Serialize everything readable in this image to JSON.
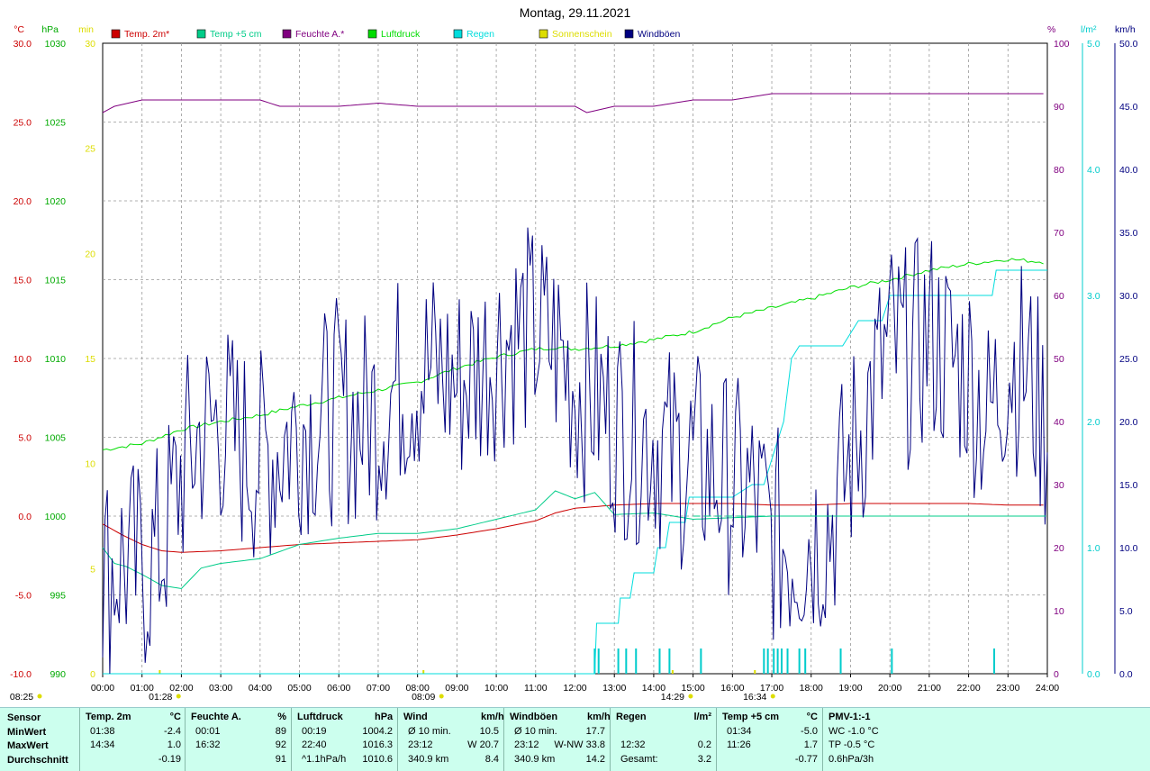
{
  "chart_data": {
    "type": "line",
    "title": "Montag, 29.11.2021",
    "x": {
      "ticks": [
        "00:00",
        "01:00",
        "02:00",
        "03:00",
        "04:00",
        "05:00",
        "06:00",
        "07:00",
        "08:00",
        "09:00",
        "10:00",
        "11:00",
        "12:00",
        "13:00",
        "14:00",
        "15:00",
        "16:00",
        "17:00",
        "18:00",
        "19:00",
        "20:00",
        "21:00",
        "22:00",
        "23:00",
        "24:00"
      ],
      "range_h": [
        0,
        24
      ]
    },
    "axes": {
      "temp": {
        "unit": "°C",
        "min": -10,
        "max": 30,
        "color": "#cc0000",
        "ticks": [
          "30.0",
          "25.0",
          "20.0",
          "15.0",
          "10.0",
          "5.0",
          "0.0",
          "-5.0",
          "-10.0"
        ]
      },
      "pressure": {
        "unit": "hPa",
        "min": 990,
        "max": 1030,
        "color": "#00aa00",
        "ticks": [
          "1030",
          "1025",
          "1020",
          "1015",
          "1010",
          "1005",
          "1000",
          "995",
          "990"
        ]
      },
      "sun": {
        "unit": "min",
        "min": 0,
        "max": 30,
        "color": "#dddd00",
        "ticks": [
          "30",
          "25",
          "20",
          "15",
          "10",
          "5",
          "0"
        ]
      },
      "humidity": {
        "unit": "%",
        "min": 0,
        "max": 100,
        "color": "#800080",
        "ticks": [
          "100",
          "90",
          "80",
          "70",
          "60",
          "50",
          "40",
          "30",
          "20",
          "10",
          "0"
        ]
      },
      "rain": {
        "unit": "l/m²",
        "min": 0,
        "max": 5,
        "color": "#00cccc",
        "ticks": [
          "5.0",
          "4.0",
          "3.0",
          "2.0",
          "1.0",
          "0.0"
        ]
      },
      "wind": {
        "unit": "km/h",
        "min": 0,
        "max": 50,
        "color": "#000080",
        "ticks": [
          "50.0",
          "45.0",
          "40.0",
          "35.0",
          "30.0",
          "25.0",
          "20.0",
          "15.0",
          "10.0",
          "5.0",
          "0.0"
        ]
      }
    },
    "legend": [
      {
        "name": "Temp. 2m*",
        "color": "#cc0000"
      },
      {
        "name": "Temp +5 cm",
        "color": "#00cc88"
      },
      {
        "name": "Feuchte A.*",
        "color": "#800080"
      },
      {
        "name": "Luftdruck",
        "color": "#00dd00"
      },
      {
        "name": "Regen",
        "color": "#00dddd"
      },
      {
        "name": "Sonnenschein",
        "color": "#dddd00"
      },
      {
        "name": "Windböen",
        "color": "#000080"
      }
    ],
    "series": [
      {
        "name": "Temp. 2m*",
        "axis": "temp",
        "x": [
          0,
          0.5,
          1,
          1.5,
          2,
          3,
          4,
          5,
          6,
          7,
          8,
          9,
          10,
          11,
          11.5,
          12,
          13,
          14,
          15,
          16,
          17,
          18,
          19,
          20,
          21,
          22,
          23,
          24
        ],
        "values": [
          -0.5,
          -1.2,
          -1.8,
          -2.2,
          -2.3,
          -2.2,
          -2.0,
          -1.8,
          -1.7,
          -1.6,
          -1.5,
          -1.2,
          -0.8,
          -0.3,
          0.2,
          0.5,
          0.7,
          0.8,
          0.8,
          0.8,
          0.7,
          0.7,
          0.8,
          0.8,
          0.8,
          0.8,
          0.7,
          0.7
        ]
      },
      {
        "name": "Temp +5 cm",
        "axis": "temp",
        "x": [
          0,
          0.3,
          0.6,
          1,
          1.5,
          2,
          2.5,
          3,
          4,
          5,
          6,
          7,
          8,
          9,
          10,
          11,
          11.5,
          12,
          12.5,
          13,
          14,
          15,
          16,
          17,
          18,
          19,
          20,
          21,
          22,
          23,
          24
        ],
        "values": [
          -2.0,
          -3.0,
          -3.2,
          -3.7,
          -4.4,
          -4.6,
          -3.3,
          -3.0,
          -2.7,
          -1.8,
          -1.4,
          -1.1,
          -1.1,
          -0.8,
          -0.2,
          0.4,
          1.6,
          1.1,
          1.5,
          0.1,
          0.2,
          -0.2,
          -0.1,
          0,
          0,
          0,
          0,
          0,
          0,
          0,
          0
        ]
      },
      {
        "name": "Feuchte A.*",
        "axis": "humidity",
        "x": [
          0,
          0.3,
          1,
          2,
          4,
          4.5,
          5,
          6,
          7,
          8,
          10,
          11,
          12,
          12.3,
          13,
          14,
          15,
          16,
          17,
          18,
          20,
          24
        ],
        "values": [
          89,
          90,
          91,
          91,
          91,
          90,
          90,
          90,
          90.5,
          90,
          90,
          90,
          90,
          89,
          90,
          90,
          91,
          91,
          92,
          92,
          92,
          92
        ]
      },
      {
        "name": "Luftdruck",
        "axis": "pressure",
        "x": [
          0,
          1,
          2,
          3,
          4,
          5,
          6,
          7,
          8,
          9,
          10,
          11,
          11.5,
          12,
          13,
          14,
          15,
          16,
          17,
          18,
          19,
          20,
          21,
          22,
          23,
          24
        ],
        "values": [
          1004.2,
          1004.6,
          1005.5,
          1006.0,
          1006.4,
          1007.0,
          1007.5,
          1008.0,
          1008.5,
          1009.4,
          1010.1,
          1010.6,
          1010.7,
          1010.6,
          1010.8,
          1011.2,
          1011.7,
          1012.6,
          1013.2,
          1013.8,
          1014.5,
          1015.0,
          1015.6,
          1016.0,
          1016.3,
          1016.1
        ]
      },
      {
        "name": "Regen",
        "axis": "rain",
        "x": [
          0,
          12.5,
          12.55,
          13.1,
          13.15,
          13.4,
          13.5,
          14.0,
          14.1,
          14.3,
          14.4,
          14.8,
          14.9,
          15.0,
          16.0,
          16.5,
          16.8,
          17.0,
          17.3,
          17.5,
          17.7,
          18.0,
          18.8,
          19.2,
          19.8,
          20.0,
          21.0,
          22.0,
          22.6,
          22.7,
          24
        ],
        "values": [
          0,
          0,
          0.4,
          0.4,
          0.6,
          0.6,
          0.8,
          0.8,
          1.0,
          1.0,
          1.2,
          1.2,
          1.4,
          1.4,
          1.4,
          1.5,
          1.5,
          1.7,
          2.0,
          2.5,
          2.6,
          2.6,
          2.6,
          2.8,
          2.8,
          3.0,
          3.0,
          3.0,
          3.0,
          3.2,
          3.2
        ]
      },
      {
        "name": "Windböen",
        "axis": "wind",
        "kind": "noisy",
        "x": [
          0,
          0.5,
          1,
          1.5,
          2,
          2.5,
          3,
          3.5,
          4,
          4.5,
          5,
          5.5,
          6,
          6.5,
          7,
          7.5,
          8,
          8.5,
          9,
          9.5,
          10,
          10.5,
          11,
          11.5,
          12,
          12.5,
          13,
          13.5,
          14,
          14.5,
          15,
          15.5,
          16,
          16.5,
          17,
          17.5,
          18,
          18.5,
          19,
          19.5,
          20,
          20.5,
          21,
          21.5,
          22,
          22.5,
          23,
          23.5,
          24
        ],
        "values": [
          8,
          9,
          8,
          10,
          16,
          19,
          20,
          18,
          17,
          18,
          20,
          20,
          21,
          20,
          21,
          23,
          24,
          24,
          23,
          24,
          26,
          27,
          27,
          26,
          23,
          22,
          20,
          19,
          19,
          17,
          17,
          16,
          15,
          14,
          11,
          10,
          11,
          12,
          17,
          22,
          26,
          25,
          27,
          25,
          24,
          20,
          25,
          24,
          19
        ]
      }
    ],
    "rain_events_h": [
      12.5,
      12.6,
      13.1,
      13.3,
      13.55,
      14.15,
      14.4,
      15.2,
      16.8,
      16.9,
      17.05,
      17.15,
      17.25,
      17.4,
      17.7,
      17.85,
      18.75,
      20.05,
      22.65
    ],
    "sun_events_h": [
      1.45,
      8.15,
      14.48,
      16.57
    ],
    "bottom_markers": [
      {
        "label": "08:25",
        "h": -3
      },
      {
        "label": "01:28",
        "h": 1.47
      },
      {
        "label": "08:09",
        "h": 8.15
      },
      {
        "label": "14:29",
        "h": 14.48
      },
      {
        "label": "16:34",
        "h": 16.57
      }
    ]
  },
  "stats": {
    "sensor": {
      "header": "Sensor",
      "rows": [
        "MinWert",
        "MaxWert",
        "Durchschnitt"
      ]
    },
    "temp2m": {
      "header": "Temp. 2m",
      "unit": "°C",
      "rows": [
        [
          "01:38",
          "-2.4"
        ],
        [
          "14:34",
          "1.0"
        ],
        [
          "",
          "-0.19"
        ]
      ]
    },
    "feuchte": {
      "header": "Feuchte A.",
      "unit": "%",
      "rows": [
        [
          "00:01",
          "89"
        ],
        [
          "16:32",
          "92"
        ],
        [
          "",
          "91"
        ]
      ]
    },
    "luftdruck": {
      "header": "Luftdruck",
      "unit": "hPa",
      "rows": [
        [
          "00:19",
          "1004.2"
        ],
        [
          "22:40",
          "1016.3"
        ],
        [
          "^1.1hPa/h",
          "1010.6"
        ]
      ]
    },
    "wind": {
      "header": "Wind",
      "unit": "km/h",
      "rows": [
        [
          "Ø 10 min.",
          "10.5"
        ],
        [
          "23:12",
          "W 20.7"
        ],
        [
          "340.9 km",
          "8.4"
        ]
      ]
    },
    "windboeen": {
      "header": "Windböen",
      "unit": "km/h",
      "rows": [
        [
          "Ø 10 min.",
          "17.7"
        ],
        [
          "23:12",
          "W-NW 33.8"
        ],
        [
          "340.9 km",
          "14.2"
        ]
      ]
    },
    "regen": {
      "header": "Regen",
      "unit": "l/m²",
      "rows": [
        [
          "",
          ""
        ],
        [
          "12:32",
          "0.2"
        ],
        [
          "Gesamt:",
          "3.2"
        ]
      ]
    },
    "temp5cm": {
      "header": "Temp +5 cm",
      "unit": "°C",
      "rows": [
        [
          "01:34",
          "-5.0"
        ],
        [
          "11:26",
          "1.7"
        ],
        [
          "",
          "-0.77"
        ]
      ]
    },
    "pmv": {
      "header": "PMV-1:-1",
      "rows": [
        "WC -1.0 °C",
        "TP -0.5 °C",
        "0.6hPa/3h"
      ]
    }
  }
}
